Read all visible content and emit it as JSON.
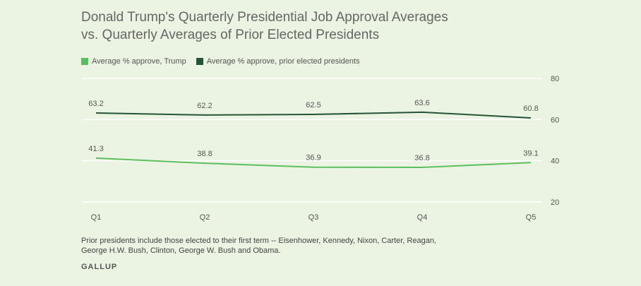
{
  "chart_data": {
    "type": "line",
    "title_lines": [
      "Donald Trump's Quarterly Presidential Job Approval Averages",
      "vs. Quarterly Averages of Prior Elected Presidents"
    ],
    "categories": [
      "Q1",
      "Q2",
      "Q3",
      "Q4",
      "Q5"
    ],
    "series": [
      {
        "name": "Average % approve, Trump",
        "color": "#5cbf5e",
        "values": [
          41.3,
          38.8,
          36.9,
          36.8,
          39.1
        ]
      },
      {
        "name": "Average % approve, prior elected presidents",
        "color": "#24543a",
        "values": [
          63.2,
          62.2,
          62.5,
          63.6,
          60.8
        ]
      }
    ],
    "yticks": [
      "20",
      "40",
      "60",
      "80"
    ],
    "ylim": [
      20,
      80
    ],
    "grid": true,
    "legend_position": "top-left"
  },
  "note_lines": [
    "Prior presidents include those elected to their first term -- Eisenhower, Kennedy, Nixon, Carter, Reagan,",
    "George H.W. Bush, Clinton, George W. Bush and Obama."
  ],
  "source": "GALLUP"
}
